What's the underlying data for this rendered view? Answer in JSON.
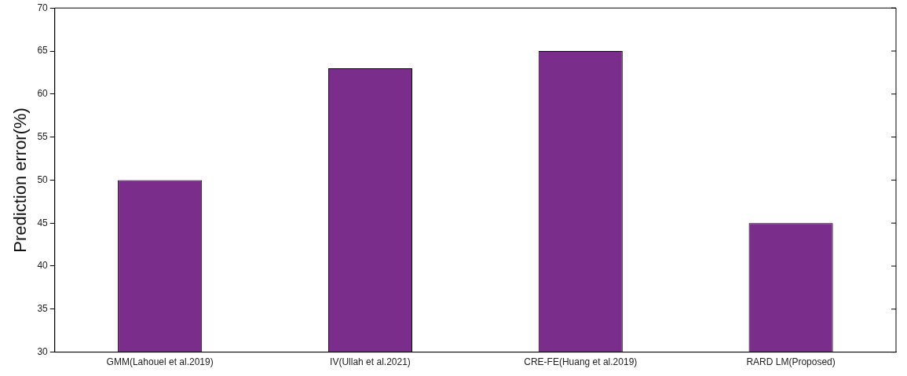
{
  "chart_data": {
    "type": "bar",
    "ylabel": "Prediction error(%)",
    "categories": [
      "GMM(Lahouel et al.2019)",
      "IV(Ullah et al.2021)",
      "CRE-FE(Huang et al.2019)",
      "RARD LM(Proposed)"
    ],
    "values": [
      50,
      63,
      65,
      45
    ],
    "color": "#7b2d8b",
    "ylim": [
      30,
      70
    ],
    "yticks": [
      30,
      35,
      40,
      45,
      50,
      55,
      60,
      65,
      70
    ],
    "grid": false,
    "legend": false
  }
}
